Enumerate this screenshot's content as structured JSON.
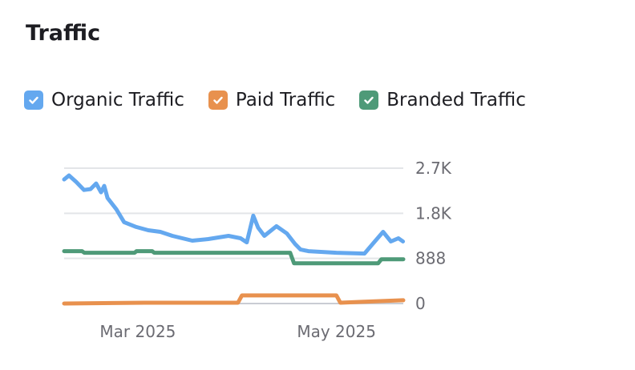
{
  "title": "Traffic",
  "legend": [
    {
      "label": "Organic Traffic",
      "color": "#64a8ef",
      "checked": true
    },
    {
      "label": "Paid Traffic",
      "color": "#e8914e",
      "checked": true
    },
    {
      "label": "Branded Traffic",
      "color": "#4e9a78",
      "checked": true
    }
  ],
  "chart_data": {
    "type": "line",
    "title": "Traffic",
    "x_unit": "days since ~Feb 7 2025",
    "xlim": [
      0,
      104
    ],
    "ylim": [
      0,
      2664
    ],
    "y_ticks": [
      {
        "value": 0,
        "label": "0"
      },
      {
        "value": 888,
        "label": "888"
      },
      {
        "value": 1776,
        "label": "1.8K"
      },
      {
        "value": 2664,
        "label": "2.7K"
      }
    ],
    "x_ticks": [
      {
        "value": 22.6,
        "label": "Mar 2025"
      },
      {
        "value": 83.5,
        "label": "May 2025"
      }
    ],
    "grid": true,
    "series": [
      {
        "name": "Organic Traffic",
        "color": "#64a8ef",
        "x": [
          0,
          1.5,
          3.7,
          6.1,
          8.1,
          9.8,
          11.3,
          12.3,
          13.3,
          16,
          18.4,
          22.1,
          25.8,
          29.5,
          33.2,
          39.3,
          44.2,
          50.4,
          54.1,
          56,
          58,
          59.5,
          61.4,
          65.1,
          68.3,
          70.8,
          72.5,
          74.9,
          83.5,
          92.1,
          94.6,
          97.8,
          100.2,
          102.5,
          103.9
        ],
        "y": [
          2442,
          2520,
          2395,
          2236,
          2252,
          2363,
          2189,
          2315,
          2078,
          1855,
          1602,
          1507,
          1443,
          1411,
          1332,
          1237,
          1269,
          1332,
          1284,
          1205,
          1729,
          1491,
          1332,
          1523,
          1380,
          1173,
          1063,
          1031,
          999,
          983,
          1173,
          1411,
          1221,
          1284,
          1221
        ]
      },
      {
        "name": "Paid Traffic",
        "color": "#e8914e",
        "x": [
          0,
          24.6,
          53.3,
          54.5,
          83.5,
          84.7,
          90.5,
          104
        ],
        "y": [
          0,
          16,
          16,
          159,
          159,
          16,
          32,
          64
        ]
      },
      {
        "name": "Branded Traffic",
        "color": "#4e9a78",
        "x": [
          0,
          5.5,
          6.2,
          21.6,
          22.2,
          27,
          27.6,
          34.4,
          35.4,
          69.3,
          70.5,
          96.3,
          97.3,
          104
        ],
        "y": [
          1031,
          1031,
          1000,
          1000,
          1031,
          1031,
          1000,
          1000,
          1000,
          1000,
          793,
          793,
          872,
          872
        ]
      }
    ]
  }
}
